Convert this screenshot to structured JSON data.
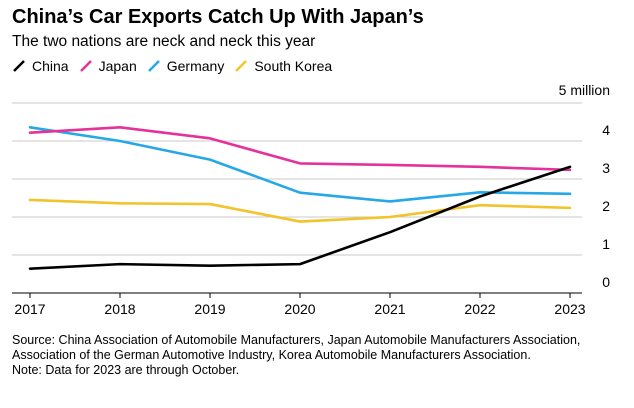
{
  "title": "China’s Car Exports Catch Up With Japan’s",
  "subtitle": "The two nations are neck and neck this year",
  "unit_label": "5 million",
  "source": "Source: China Association of Automobile Manufacturers, Japan Automobile Manufacturers Association, Association of the German Automotive Industry, Korea Automobile Manufacturers Association.",
  "note": "Note: Data for 2023 are through October.",
  "chart_data": {
    "type": "line",
    "title": "China’s Car Exports Catch Up With Japan’s",
    "subtitle": "The two nations are neck and neck this year",
    "x": [
      "2017",
      "2018",
      "2019",
      "2020",
      "2021",
      "2022",
      "2023"
    ],
    "ylim": [
      0,
      5
    ],
    "y_unit": "million",
    "y_ticks": [
      0,
      1,
      2,
      3,
      4
    ],
    "y_tick_labels": [
      "0",
      "1",
      "2",
      "3",
      "4"
    ],
    "top_tick_label": "5 million",
    "grid": true,
    "legend_position": "top",
    "series": [
      {
        "name": "China",
        "color": "#000000",
        "values": [
          0.64,
          0.76,
          0.72,
          0.76,
          1.6,
          2.54,
          3.32
        ]
      },
      {
        "name": "Japan",
        "color": "#e5319a",
        "values": [
          4.22,
          4.36,
          4.07,
          3.41,
          3.37,
          3.32,
          3.24
        ]
      },
      {
        "name": "Germany",
        "color": "#26a8e6",
        "values": [
          4.36,
          4.0,
          3.51,
          2.64,
          2.41,
          2.65,
          2.61
        ]
      },
      {
        "name": "South Korea",
        "color": "#f2c32b",
        "values": [
          2.45,
          2.36,
          2.34,
          1.88,
          2.0,
          2.31,
          2.24
        ]
      }
    ]
  }
}
